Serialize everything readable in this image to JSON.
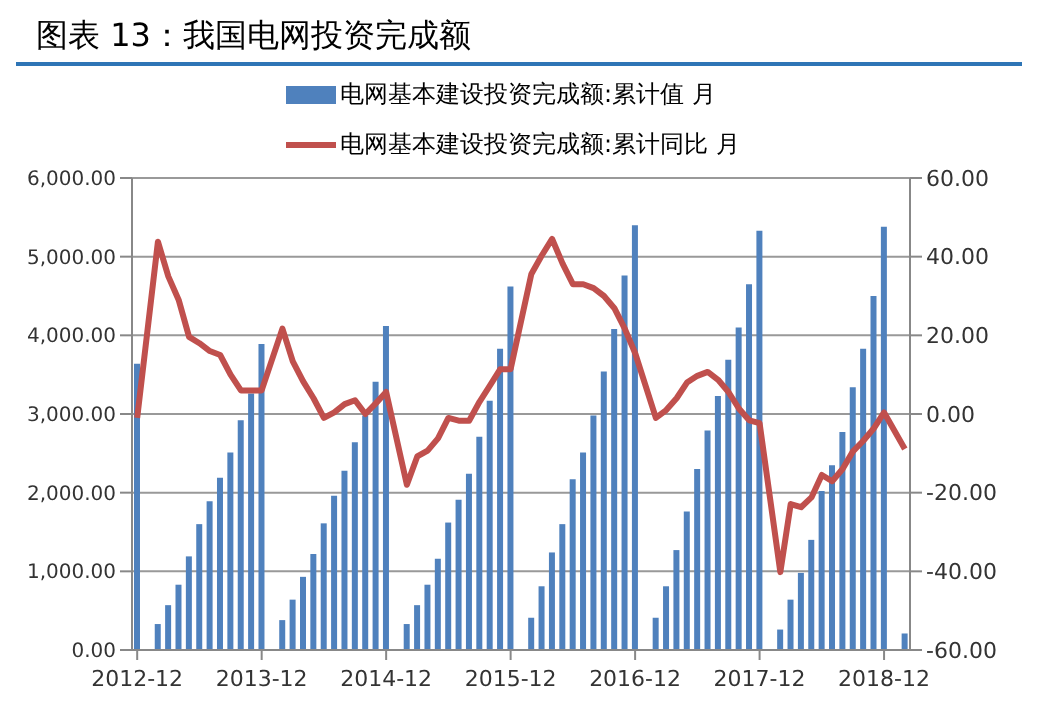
{
  "chart_data": {
    "type": "bar",
    "title": "图表 13：我国电网投资完成额",
    "categories": [
      "2012-12",
      null,
      null,
      null,
      null,
      null,
      null,
      null,
      null,
      null,
      null,
      null,
      "2013-12",
      null,
      null,
      null,
      null,
      null,
      null,
      null,
      null,
      null,
      null,
      null,
      "2014-12",
      null,
      null,
      null,
      null,
      null,
      null,
      null,
      null,
      null,
      null,
      null,
      "2015-12",
      null,
      null,
      null,
      null,
      null,
      null,
      null,
      null,
      null,
      null,
      null,
      "2016-12",
      null,
      null,
      null,
      null,
      null,
      null,
      null,
      null,
      null,
      null,
      null,
      "2017-12",
      null,
      null,
      null,
      null,
      null,
      null,
      null,
      null,
      null,
      null,
      null,
      "2018-12",
      null,
      null
    ],
    "series": [
      {
        "name": "电网基本建设投资完成额:累计值 月",
        "color": "#4f81bd",
        "values": [
          3640,
          null,
          330,
          570,
          830,
          1190,
          1600,
          1890,
          2190,
          2510,
          2920,
          3260,
          3890,
          null,
          380,
          640,
          930,
          1220,
          1610,
          1960,
          2280,
          2640,
          2980,
          3410,
          4120,
          null,
          330,
          570,
          830,
          1160,
          1620,
          1910,
          2240,
          2710,
          3170,
          3830,
          4620,
          null,
          410,
          810,
          1240,
          1600,
          2170,
          2510,
          2980,
          3540,
          4080,
          4760,
          5400,
          null,
          410,
          810,
          1270,
          1760,
          2300,
          2790,
          3230,
          3690,
          4100,
          4650,
          5330,
          null,
          260,
          640,
          980,
          1400,
          2020,
          2350,
          2770,
          3340,
          3830,
          4500,
          5380,
          null,
          210
        ]
      },
      {
        "name": "电网基本建设投资完成额:累计同比 月",
        "type": "line",
        "axis": "y2",
        "color": "#c0504d",
        "values": [
          -1,
          null,
          43.8,
          35,
          29,
          19.6,
          18,
          16,
          15,
          10,
          6,
          6,
          6,
          null,
          21.7,
          13.4,
          8.3,
          4,
          -1,
          0.4,
          2.5,
          3.5,
          0,
          2.7,
          5.6,
          null,
          -18,
          -10.8,
          -9.3,
          -6.2,
          -1,
          -1.7,
          -1.7,
          3.1,
          7.2,
          11.4,
          11.4,
          null,
          35.6,
          40.3,
          44.5,
          38.3,
          33,
          33,
          32,
          30,
          26.9,
          21.7,
          15.5,
          null,
          -1,
          1,
          4,
          8,
          9.7,
          10.7,
          8.7,
          5.6,
          1.4,
          -1.6,
          -2.3,
          null,
          -40.2,
          -22.9,
          -23.7,
          -21.2,
          -15.5,
          -17.1,
          -14,
          -9.5,
          -6.8,
          -3.7,
          0.4,
          null,
          -8.9
        ]
      }
    ],
    "ylim": [
      0,
      6000
    ],
    "yticks": [
      {
        "value": 0,
        "label": "0.00"
      },
      {
        "value": 1000,
        "label": "1,000.00"
      },
      {
        "value": 2000,
        "label": "2,000.00"
      },
      {
        "value": 3000,
        "label": "3,000.00"
      },
      {
        "value": 4000,
        "label": "4,000.00"
      },
      {
        "value": 5000,
        "label": "5,000.00"
      },
      {
        "value": 6000,
        "label": "6,000.00"
      }
    ],
    "y2lim": [
      -60,
      60
    ],
    "y2ticks": [
      {
        "value": -60,
        "label": "-60.00"
      },
      {
        "value": -40,
        "label": "-40.00"
      },
      {
        "value": -20,
        "label": "-20.00"
      },
      {
        "value": 0,
        "label": "0.00"
      },
      {
        "value": 20,
        "label": "20.00"
      },
      {
        "value": 40,
        "label": "40.00"
      },
      {
        "value": 60,
        "label": "60.00"
      }
    ],
    "grid": "y",
    "legend": "top",
    "marker": "none",
    "line_style": "solid"
  }
}
